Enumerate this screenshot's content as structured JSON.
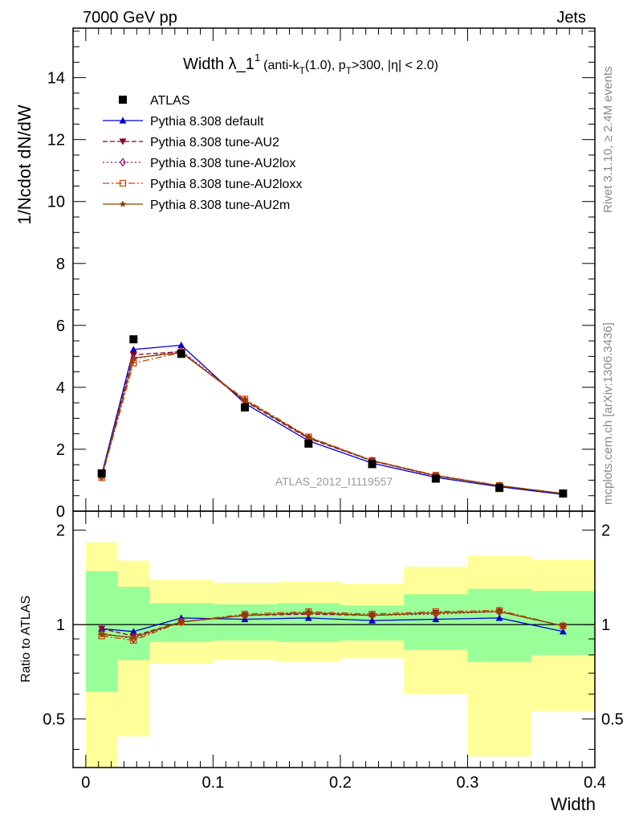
{
  "header": {
    "left": "7000 GeV pp",
    "right": "Jets"
  },
  "plot_title": {
    "main": "Width λ_1",
    "superscript": "1",
    "detail_pre": "(anti-k",
    "detail_sub1": "T",
    "detail_mid": "(1.0), p",
    "detail_sub2": "T",
    "detail_post": ">300, |η| < 2.0)"
  },
  "side_labels": {
    "rivet": "Rivet 3.1.10, ≥ 2.4M events",
    "mcplots": "mcplots.cern.ch [arXiv:1306.3436]"
  },
  "watermark": "ATLAS_2012_I1119557",
  "colors": {
    "data": "#000000",
    "default": "#0000cc",
    "au2": "#880033",
    "au2lox": "#aa0066",
    "au2loxx": "#cc4400",
    "au2m": "#884400",
    "band_inner": "#99ff99",
    "band_outer": "#ffff99"
  },
  "chart_data": [
    {
      "type": "line",
      "ylabel": "1/Ncdot dN/dW",
      "xlabel": "",
      "xlim": [
        -0.01,
        0.4
      ],
      "ylim": [
        0,
        15.6
      ],
      "yticks": [
        0,
        2,
        4,
        6,
        8,
        10,
        12,
        14
      ],
      "x": [
        0.0125,
        0.0375,
        0.075,
        0.125,
        0.175,
        0.225,
        0.275,
        0.325,
        0.375
      ],
      "series": [
        {
          "name": "ATLAS",
          "key": "data",
          "marker": "square",
          "values": [
            1.22,
            5.55,
            5.08,
            3.35,
            2.18,
            1.52,
            1.05,
            0.75,
            0.57
          ]
        },
        {
          "name": "Pythia 8.308 default",
          "key": "default",
          "marker": "triangle-up",
          "dash": "",
          "values": [
            1.18,
            5.22,
            5.36,
            3.48,
            2.27,
            1.55,
            1.09,
            0.79,
            0.54
          ]
        },
        {
          "name": "Pythia 8.308 tune-AU2",
          "key": "au2",
          "marker": "triangle-down",
          "dash": "6,3",
          "values": [
            1.15,
            5.05,
            5.15,
            3.55,
            2.35,
            1.62,
            1.14,
            0.82,
            0.57
          ]
        },
        {
          "name": "Pythia 8.308 tune-AU2lox",
          "key": "au2lox",
          "marker": "diamond",
          "dash": "2,3",
          "values": [
            1.11,
            4.92,
            5.18,
            3.58,
            2.37,
            1.62,
            1.13,
            0.82,
            0.57
          ]
        },
        {
          "name": "Pythia 8.308 tune-AU2loxx",
          "key": "au2loxx",
          "marker": "open-square",
          "dash": "8,3,2,3",
          "values": [
            1.08,
            4.78,
            5.12,
            3.62,
            2.4,
            1.64,
            1.16,
            0.83,
            0.57
          ]
        },
        {
          "name": "Pythia 8.308 tune-AU2m",
          "key": "au2m",
          "marker": "star",
          "dash": "",
          "values": [
            1.12,
            4.95,
            5.12,
            3.58,
            2.38,
            1.63,
            1.15,
            0.82,
            0.57
          ]
        }
      ]
    },
    {
      "type": "line",
      "ylabel": "Ratio to ATLAS",
      "xlabel": "Width",
      "xlim": [
        -0.01,
        0.4
      ],
      "ylim": [
        0.35,
        2.3
      ],
      "yscale": "log",
      "yticks": [
        0.5,
        1,
        2
      ],
      "xticks": [
        0,
        0.1,
        0.2,
        0.3,
        0.4
      ],
      "reference_line": 1,
      "bins": [
        [
          0.0,
          0.025
        ],
        [
          0.025,
          0.05
        ],
        [
          0.05,
          0.1
        ],
        [
          0.1,
          0.15
        ],
        [
          0.15,
          0.2
        ],
        [
          0.2,
          0.25
        ],
        [
          0.25,
          0.3
        ],
        [
          0.3,
          0.35
        ],
        [
          0.35,
          0.4
        ]
      ],
      "band_inner": [
        [
          0.61,
          1.48
        ],
        [
          0.77,
          1.32
        ],
        [
          0.88,
          1.17
        ],
        [
          0.89,
          1.16
        ],
        [
          0.88,
          1.17
        ],
        [
          0.89,
          1.15
        ],
        [
          0.83,
          1.25
        ],
        [
          0.76,
          1.3
        ],
        [
          0.8,
          1.28
        ]
      ],
      "band_outer": [
        [
          0.33,
          1.83
        ],
        [
          0.44,
          1.6
        ],
        [
          0.75,
          1.39
        ],
        [
          0.77,
          1.36
        ],
        [
          0.76,
          1.37
        ],
        [
          0.78,
          1.35
        ],
        [
          0.6,
          1.53
        ],
        [
          0.38,
          1.66
        ],
        [
          0.53,
          1.61
        ]
      ],
      "x": [
        0.0125,
        0.0375,
        0.075,
        0.125,
        0.175,
        0.225,
        0.275,
        0.325,
        0.375
      ],
      "series": [
        {
          "name": "Pythia 8.308 default",
          "key": "default",
          "marker": "triangle-up",
          "dash": "",
          "values": [
            0.97,
            0.95,
            1.05,
            1.04,
            1.05,
            1.03,
            1.04,
            1.05,
            0.95
          ]
        },
        {
          "name": "Pythia 8.308 tune-AU2",
          "key": "au2",
          "marker": "triangle-down",
          "dash": "6,3",
          "values": [
            0.97,
            0.92,
            1.02,
            1.07,
            1.08,
            1.07,
            1.09,
            1.1,
            0.99
          ]
        },
        {
          "name": "Pythia 8.308 tune-AU2lox",
          "key": "au2lox",
          "marker": "diamond",
          "dash": "2,3",
          "values": [
            0.94,
            0.9,
            1.02,
            1.07,
            1.09,
            1.07,
            1.08,
            1.1,
            0.99
          ]
        },
        {
          "name": "Pythia 8.308 tune-AU2loxx",
          "key": "au2loxx",
          "marker": "open-square",
          "dash": "8,3,2,3",
          "values": [
            0.92,
            0.89,
            1.02,
            1.08,
            1.1,
            1.08,
            1.1,
            1.11,
            0.99
          ]
        },
        {
          "name": "Pythia 8.308 tune-AU2m",
          "key": "au2m",
          "marker": "star",
          "dash": "",
          "values": [
            0.93,
            0.91,
            1.02,
            1.07,
            1.09,
            1.07,
            1.09,
            1.1,
            0.99
          ]
        }
      ]
    }
  ]
}
